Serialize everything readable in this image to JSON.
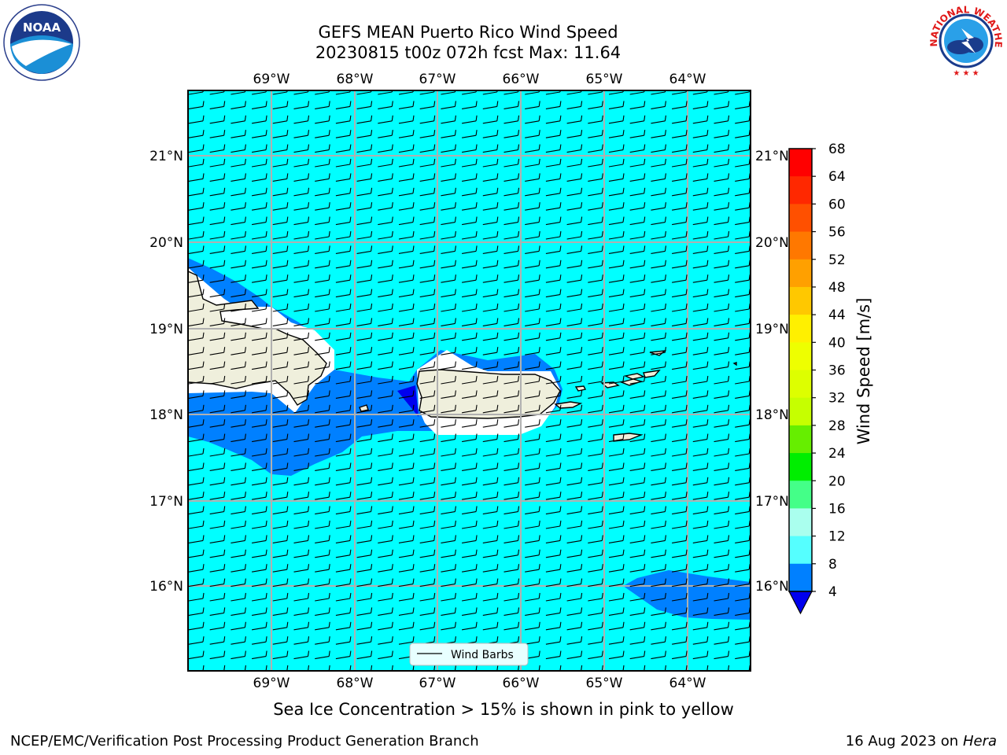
{
  "header": {
    "title_line1": "GEFS MEAN Puerto Rico Wind Speed",
    "title_line2": "20230815 t00z 072h fcst   Max: 11.64"
  },
  "map": {
    "lon_labels": [
      "69°W",
      "68°W",
      "67°W",
      "66°W",
      "65°W",
      "64°W"
    ],
    "lat_labels": [
      "21°N",
      "20°N",
      "19°N",
      "18°N",
      "17°N",
      "16°N"
    ],
    "legend_label": "Wind Barbs",
    "background_color": "#00ffff"
  },
  "colorbar": {
    "label": "Wind Speed [m/s]",
    "ticks": [
      "68",
      "64",
      "60",
      "56",
      "52",
      "48",
      "44",
      "40",
      "36",
      "32",
      "28",
      "24",
      "20",
      "16",
      "12",
      "8",
      "4"
    ],
    "colors_top_to_bottom": [
      "#ff0000",
      "#ff2800",
      "#ff5000",
      "#ff7800",
      "#ffa000",
      "#ffc800",
      "#fff000",
      "#eeff00",
      "#ddff00",
      "#c6ff00",
      "#66ee00",
      "#00ee00",
      "#44ff88",
      "#aaffee",
      "#55ffff",
      "#00ffff",
      "#0080ff"
    ],
    "extend_color": "#0000ee"
  },
  "caption": "Sea Ice Concentration > 15% is shown in pink to yellow",
  "footer": {
    "left": "NCEP/EMC/Verification Post Processing Product Generation Branch",
    "right_date": "16 Aug 2023 on",
    "right_host": "Hera"
  },
  "logos": {
    "noaa_text": "NOAA",
    "nws_text": "NATIONAL WEATHER SERVICE"
  }
}
